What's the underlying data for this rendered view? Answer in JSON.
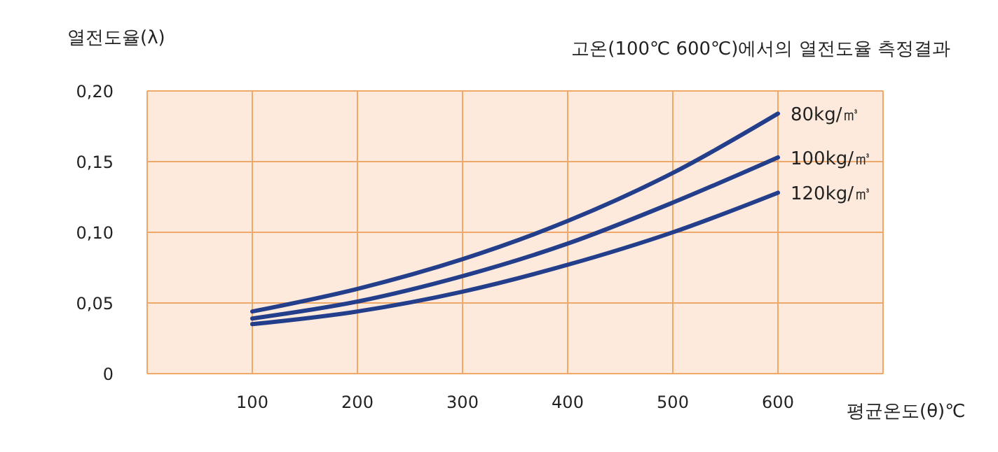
{
  "chart_data": {
    "type": "line",
    "title": "고온(100℃ 600℃)에서의 열전도율 측정결과",
    "ylabel": "열전도율(λ)",
    "xlabel": "평균온도(θ)℃",
    "x": [
      100,
      200,
      300,
      400,
      500,
      600
    ],
    "series": [
      {
        "name": "80kg/㎥",
        "color": "#233e8b",
        "values": [
          0.044,
          0.06,
          0.081,
          0.108,
          0.142,
          0.184
        ]
      },
      {
        "name": "100kg/㎥",
        "color": "#233e8b",
        "values": [
          0.039,
          0.051,
          0.069,
          0.092,
          0.121,
          0.153
        ]
      },
      {
        "name": "120kg/㎥",
        "color": "#233e8b",
        "values": [
          0.035,
          0.044,
          0.058,
          0.077,
          0.1,
          0.128
        ]
      }
    ],
    "xlim": [
      0,
      700
    ],
    "xticks": [
      100,
      200,
      300,
      400,
      500,
      600
    ],
    "ylim": [
      0,
      0.2
    ],
    "yticks": [
      {
        "value": 0,
        "label": "0"
      },
      {
        "value": 0.05,
        "label": "0,05"
      },
      {
        "value": 0.1,
        "label": "0,10"
      },
      {
        "value": 0.15,
        "label": "0,15"
      },
      {
        "value": 0.2,
        "label": "0,20"
      }
    ],
    "grid": true,
    "marker": "none",
    "line_style": "solid"
  }
}
